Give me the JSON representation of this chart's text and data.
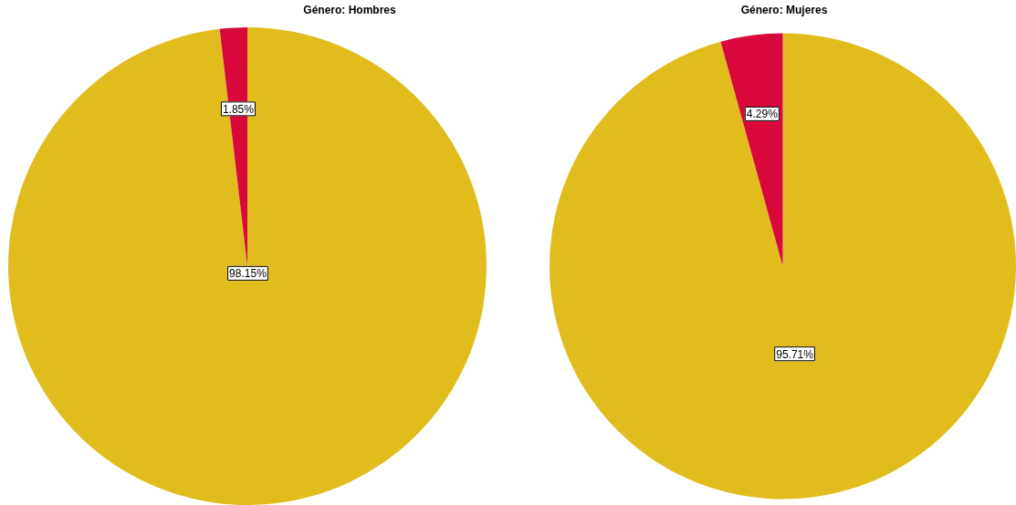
{
  "chart_data": [
    {
      "type": "pie",
      "title": "Género: Hombres",
      "categories": [
        null,
        null
      ],
      "values": [
        98.15,
        1.85
      ],
      "colors": [
        "#e1bc1d",
        "#d9083b"
      ],
      "value_labels": [
        "98.15%",
        "1.85%"
      ]
    },
    {
      "type": "pie",
      "title": "Género: Mujeres",
      "categories": [
        null,
        null
      ],
      "values": [
        95.71,
        4.29
      ],
      "colors": [
        "#e1bc1d",
        "#d9083b"
      ],
      "value_labels": [
        "95.71%",
        "4.29%"
      ]
    }
  ]
}
